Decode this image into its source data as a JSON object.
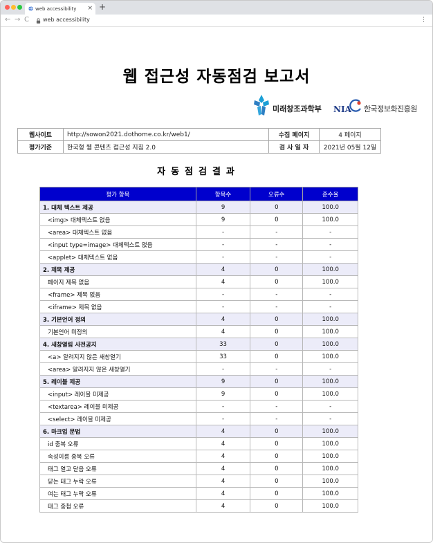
{
  "browser": {
    "tab_title": "web accessibility",
    "tab_close": "×",
    "new_tab": "+",
    "url": "web accessibility",
    "nav_back": "←",
    "nav_forward": "→",
    "nav_reload": "C",
    "menu": "⋮"
  },
  "report": {
    "title": "웹 접근성 자동점검 보고서",
    "logo_ministry": "미래창조과학부",
    "logo_nia_mark": "NIA",
    "logo_nia_name": "한국정보화진흥원"
  },
  "info": {
    "website_label": "웹사이트",
    "website_value": "http://sowon2021.dothome.co.kr/web1/",
    "pages_label": "수집 페이지",
    "pages_value": "4 페이지",
    "standard_label": "평가기준",
    "standard_value": "한국형 웹 콘텐츠 접근성 지침 2.0",
    "date_label": "검 사 일 자",
    "date_value": "2021년 05월 12일"
  },
  "results": {
    "title": "자동점검결과",
    "headers": [
      "평가 항목",
      "항목수",
      "오류수",
      "준수율"
    ],
    "rows": [
      {
        "type": "cat",
        "name": "1. 대체 텍스트 제공",
        "count": "9",
        "errors": "0",
        "rate": "100.0"
      },
      {
        "type": "sub",
        "name": "<img> 대체텍스트 없음",
        "count": "9",
        "errors": "0",
        "rate": "100.0"
      },
      {
        "type": "sub",
        "name": "<area> 대체텍스트 없음",
        "count": "-",
        "errors": "-",
        "rate": "-"
      },
      {
        "type": "sub",
        "name": "<input type=image> 대체텍스트 없음",
        "count": "-",
        "errors": "-",
        "rate": "-"
      },
      {
        "type": "sub",
        "name": "<applet> 대체텍스트 없음",
        "count": "-",
        "errors": "-",
        "rate": "-"
      },
      {
        "type": "cat",
        "name": "2. 제목 제공",
        "count": "4",
        "errors": "0",
        "rate": "100.0"
      },
      {
        "type": "sub",
        "name": "페이지 제목 없음",
        "count": "4",
        "errors": "0",
        "rate": "100.0"
      },
      {
        "type": "sub",
        "name": "<frame> 제목 없음",
        "count": "-",
        "errors": "-",
        "rate": "-"
      },
      {
        "type": "sub",
        "name": "<iframe> 제목 없음",
        "count": "-",
        "errors": "-",
        "rate": "-"
      },
      {
        "type": "cat",
        "name": "3. 기본언어 정의",
        "count": "4",
        "errors": "0",
        "rate": "100.0"
      },
      {
        "type": "sub",
        "name": "기본언어 미정의",
        "count": "4",
        "errors": "0",
        "rate": "100.0"
      },
      {
        "type": "cat",
        "name": "4. 새창열림 사전공지",
        "count": "33",
        "errors": "0",
        "rate": "100.0"
      },
      {
        "type": "sub",
        "name": "<a> 알려지지 않은 새창열기",
        "count": "33",
        "errors": "0",
        "rate": "100.0"
      },
      {
        "type": "sub",
        "name": "<area> 알려지지 않은 새창열기",
        "count": "-",
        "errors": "-",
        "rate": "-"
      },
      {
        "type": "cat",
        "name": "5. 레이블 제공",
        "count": "9",
        "errors": "0",
        "rate": "100.0"
      },
      {
        "type": "sub",
        "name": "<input> 레이블 미제공",
        "count": "9",
        "errors": "0",
        "rate": "100.0"
      },
      {
        "type": "sub",
        "name": "<textarea> 레이블 미제공",
        "count": "-",
        "errors": "-",
        "rate": "-"
      },
      {
        "type": "sub",
        "name": "<select> 레이블 미제공",
        "count": "-",
        "errors": "-",
        "rate": "-"
      },
      {
        "type": "cat",
        "name": "6. 마크업 문법",
        "count": "4",
        "errors": "0",
        "rate": "100.0"
      },
      {
        "type": "sub",
        "name": "id 중복 오류",
        "count": "4",
        "errors": "0",
        "rate": "100.0"
      },
      {
        "type": "sub",
        "name": "속성이름 중복 오류",
        "count": "4",
        "errors": "0",
        "rate": "100.0"
      },
      {
        "type": "sub",
        "name": "태그 열고 닫음 오류",
        "count": "4",
        "errors": "0",
        "rate": "100.0"
      },
      {
        "type": "sub",
        "name": "닫는 태그 누락 오류",
        "count": "4",
        "errors": "0",
        "rate": "100.0"
      },
      {
        "type": "sub",
        "name": "여는 태그 누락 오류",
        "count": "4",
        "errors": "0",
        "rate": "100.0"
      },
      {
        "type": "sub",
        "name": "태그 중첩 오류",
        "count": "4",
        "errors": "0",
        "rate": "100.0"
      }
    ]
  },
  "colors": {
    "header_bg": "#0000cd",
    "category_row_bg": "#ececf9"
  }
}
